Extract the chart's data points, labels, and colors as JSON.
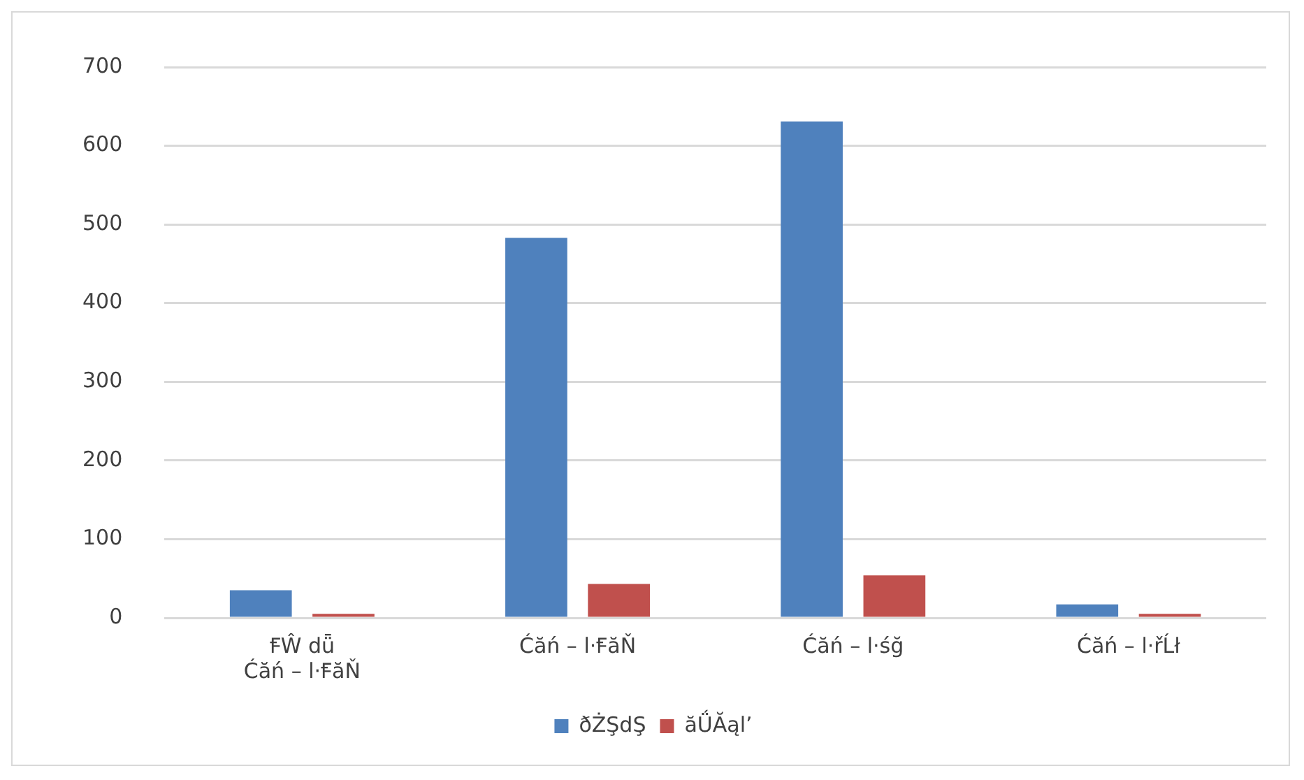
{
  "chart_data": {
    "type": "bar",
    "categories": [
      "ꞘŴ dǖ\nĆăń – l·ꞘăŇ",
      "Ćăń – l·ꞘăŇ",
      "Ćăń – l·śğ",
      "Ćăń – l·řĹł"
    ],
    "series": [
      {
        "name": "ðŻŞdŞ",
        "color": "#4f81bd",
        "values": [
          35,
          483,
          631,
          17
        ]
      },
      {
        "name": "ăǗĂąlʼ",
        "color": "#c0504d",
        "values": [
          5,
          43,
          54,
          5
        ]
      }
    ],
    "ylim": [
      0,
      700
    ],
    "yticks": [
      0,
      100,
      200,
      300,
      400,
      500,
      600,
      700
    ],
    "grid": "y",
    "legend": "bottom"
  }
}
